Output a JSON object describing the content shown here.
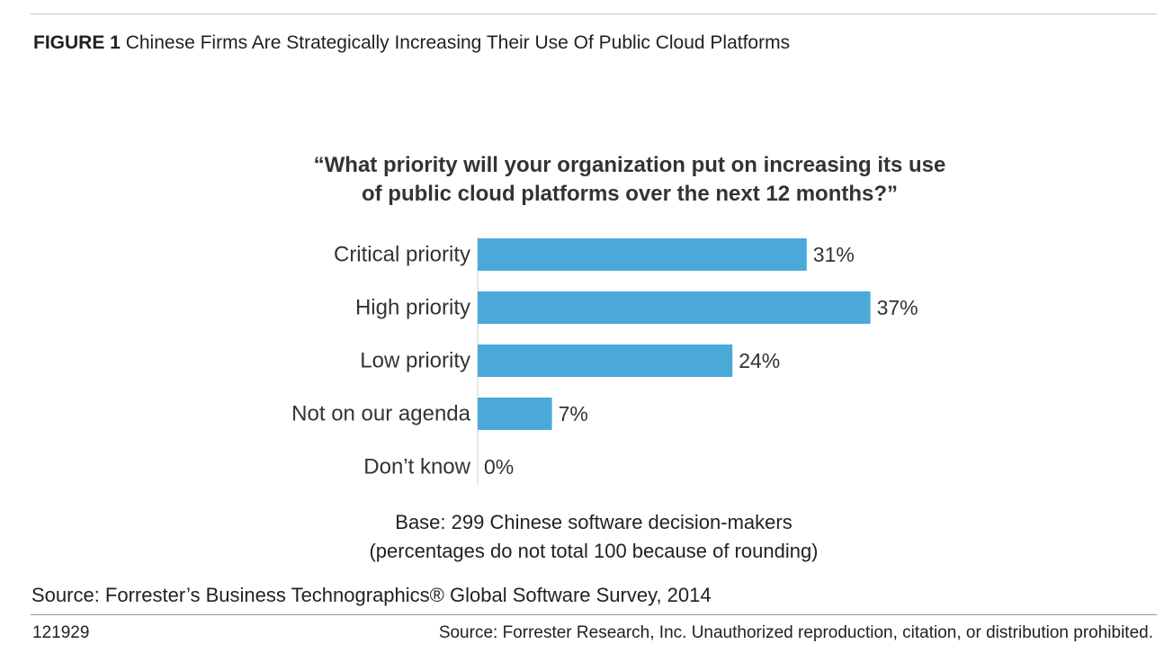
{
  "figure": {
    "label": "FIGURE 1",
    "title": "Chinese Firms Are Strategically Increasing Their Use Of Public Cloud Platforms"
  },
  "question": {
    "line1": "“What priority will your organization put on increasing its use",
    "line2": "of public cloud platforms over the next 12 months?”"
  },
  "chart_data": {
    "type": "bar",
    "orientation": "horizontal",
    "categories": [
      "Critical priority",
      "High priority",
      "Low priority",
      "Not on our agenda",
      "Don’t know"
    ],
    "values": [
      31,
      37,
      24,
      7,
      0
    ],
    "value_labels": [
      "31%",
      "37%",
      "24%",
      "7%",
      "0%"
    ],
    "unit": "%",
    "bar_color": "#4aa9d8",
    "grid": false,
    "legend": "none"
  },
  "base": {
    "line1": "Base: 299 Chinese software decision-makers",
    "line2": "(percentages do not total 100 because of rounding)"
  },
  "source": "Source: Forrester’s Business Technographics® Global Software Survey, 2014",
  "footer": {
    "figure_id": "121929",
    "copyright": "Source: Forrester Research, Inc. Unauthorized reproduction, citation, or distribution prohibited."
  }
}
